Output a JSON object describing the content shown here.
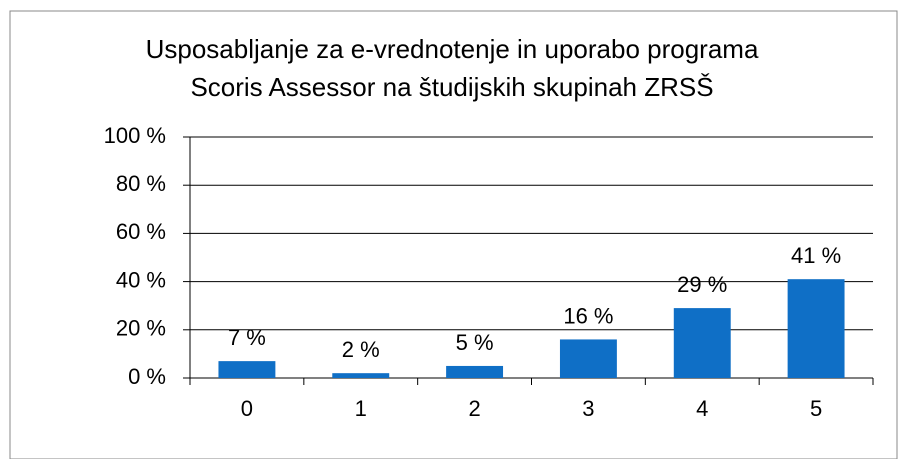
{
  "chart_data": {
    "type": "bar",
    "title": [
      "Usposabljanje za e-vrednotenje in uporabo programa",
      "Scoris Assessor na študijskih skupinah ZRSŠ"
    ],
    "categories": [
      "0",
      "1",
      "2",
      "3",
      "4",
      "5"
    ],
    "values": [
      7,
      2,
      5,
      16,
      29,
      41
    ],
    "value_labels": [
      "7 %",
      "2 %",
      "5 %",
      "16 %",
      "29 %",
      "41 %"
    ],
    "color": "#0f6fc6",
    "ylim": [
      0,
      100
    ],
    "yticks": [
      {
        "value": 0,
        "label": "0 %"
      },
      {
        "value": 20,
        "label": "20 %"
      },
      {
        "value": 40,
        "label": "40 %"
      },
      {
        "value": 60,
        "label": "60 %"
      },
      {
        "value": 80,
        "label": "80 %"
      },
      {
        "value": 100,
        "label": "100 %"
      }
    ],
    "grid": true
  }
}
